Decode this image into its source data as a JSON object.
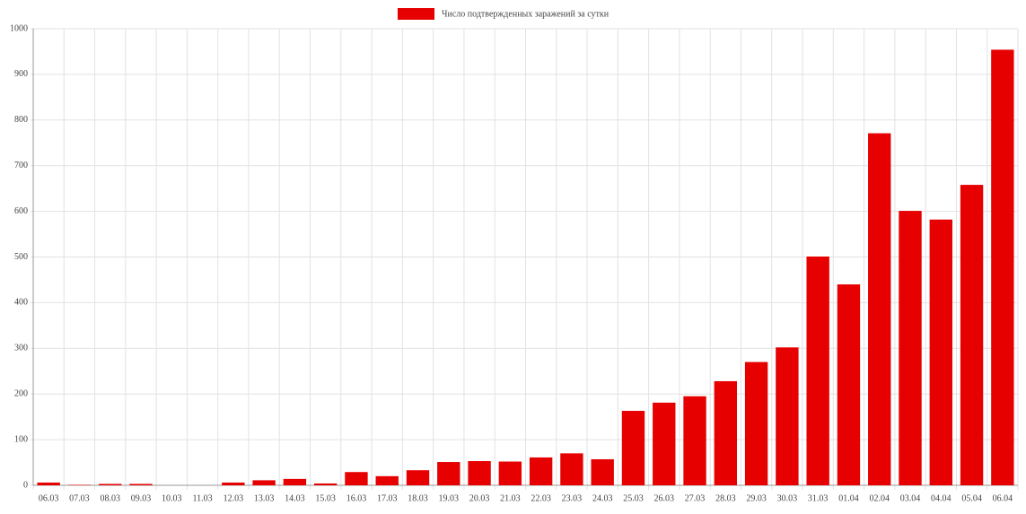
{
  "chart_data": {
    "type": "bar",
    "categories": [
      "06.03",
      "07.03",
      "08.03",
      "09.03",
      "10.03",
      "11.03",
      "12.03",
      "13.03",
      "14.03",
      "15.03",
      "16.03",
      "17.03",
      "18.03",
      "19.03",
      "20.03",
      "21.03",
      "22.03",
      "23.03",
      "24.03",
      "25.03",
      "26.03",
      "27.03",
      "28.03",
      "29.03",
      "30.03",
      "31.03",
      "01.04",
      "02.04",
      "03.04",
      "04.04",
      "05.04",
      "06.04"
    ],
    "series": [
      {
        "name": "Число подтвержденных заражений за сутки",
        "color": "#e60000",
        "values": [
          6,
          1,
          3,
          3,
          0,
          0,
          6,
          11,
          14,
          4,
          29,
          20,
          33,
          51,
          53,
          52,
          61,
          70,
          57,
          163,
          181,
          195,
          228,
          270,
          302,
          501,
          440,
          771,
          601,
          582,
          658,
          954
        ]
      }
    ],
    "ylim": [
      0,
      1000
    ],
    "yticks": [
      0,
      100,
      200,
      300,
      400,
      500,
      600,
      700,
      800,
      900,
      1000
    ],
    "grid": true,
    "legend": "top"
  }
}
